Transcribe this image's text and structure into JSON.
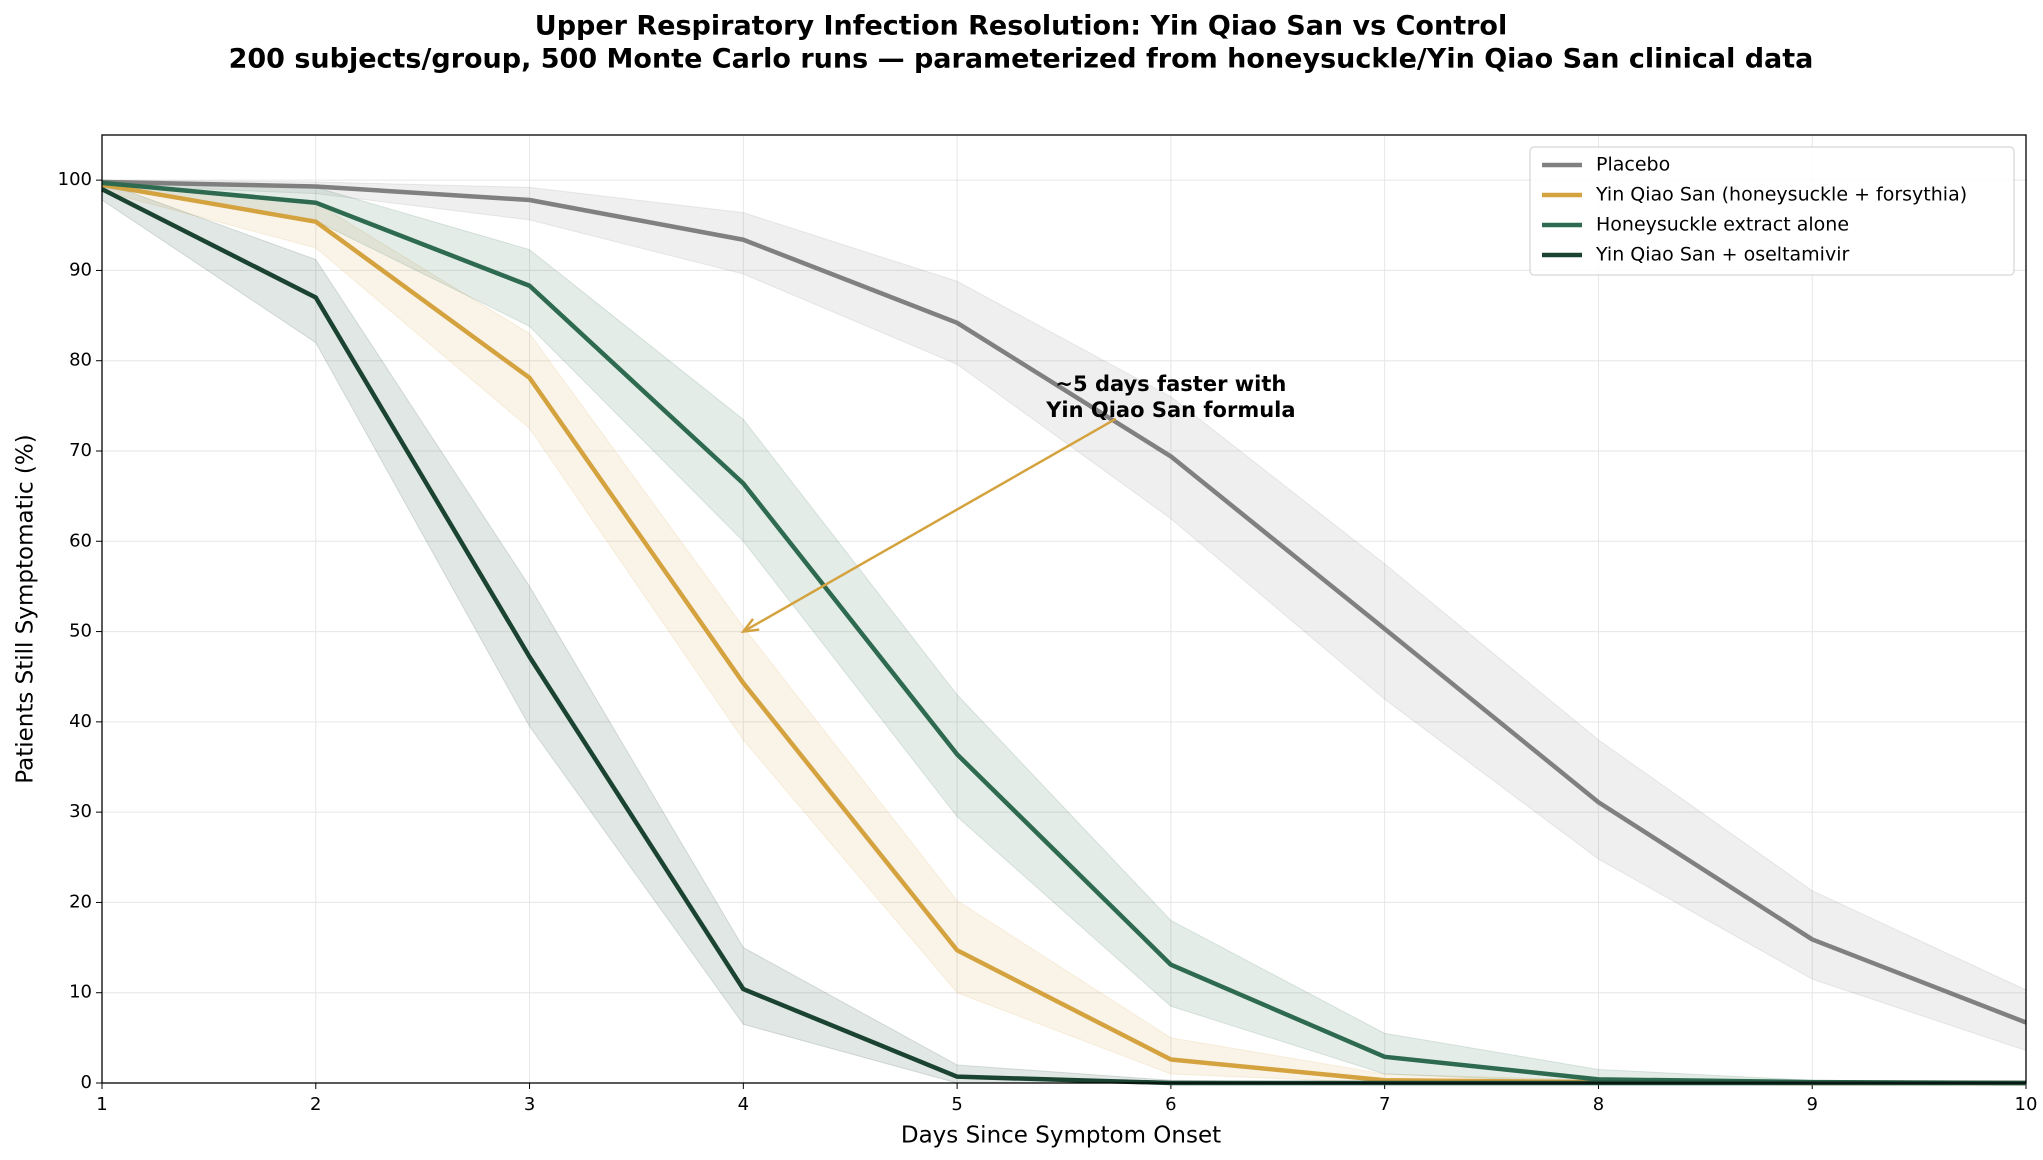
{
  "chart_data": {
    "type": "line",
    "title": "Upper Respiratory Infection Resolution: Yin Qiao San vs Control",
    "subtitle": "200 subjects/group, 500 Monte Carlo runs — parameterized from honeysuckle/Yin Qiao San clinical data",
    "xlabel": "Days Since Symptom Onset",
    "ylabel": "Patients Still Symptomatic (%)",
    "x": [
      1,
      2,
      3,
      4,
      5,
      6,
      7,
      8,
      9,
      10
    ],
    "xlim": [
      1,
      10
    ],
    "xticks": [
      1,
      2,
      3,
      4,
      5,
      6,
      7,
      8,
      9,
      10
    ],
    "ylim": [
      0,
      105
    ],
    "yticks": [
      0,
      10,
      20,
      30,
      40,
      50,
      60,
      70,
      80,
      90,
      100
    ],
    "grid": true,
    "legend": "upper right",
    "series": [
      {
        "name": "Placebo",
        "color": "#808080",
        "values": [
          99.8,
          99.3,
          97.8,
          93.4,
          84.2,
          69.4,
          50.3,
          31.1,
          15.9,
          6.7
        ],
        "upper": [
          100,
          99.8,
          99.2,
          96.4,
          88.8,
          76,
          57.5,
          38,
          21.3,
          10.3
        ],
        "lower": [
          99.5,
          98.5,
          95.6,
          89.6,
          79.6,
          62.5,
          42.5,
          24.8,
          11.5,
          3.6
        ]
      },
      {
        "name": "Yin Qiao San (honeysuckle + forsythia)",
        "color": "#d4a340",
        "values": [
          99.5,
          95.4,
          78.1,
          44.3,
          14.7,
          2.6,
          0.3,
          0.1,
          0,
          0
        ],
        "upper": [
          100,
          97.5,
          83,
          50.5,
          20.2,
          5,
          1,
          0.3,
          0.1,
          0
        ],
        "lower": [
          98.8,
          92.5,
          72.5,
          38,
          10,
          1,
          0,
          0,
          0,
          0
        ]
      },
      {
        "name": "Honeysuckle extract alone",
        "color": "#2d6a4f",
        "values": [
          99.7,
          97.5,
          88.3,
          66.4,
          36.4,
          13.1,
          2.9,
          0.4,
          0.1,
          0
        ],
        "upper": [
          100,
          99.2,
          92.3,
          73.5,
          43,
          18,
          5.5,
          1.5,
          0.3,
          0.1
        ],
        "lower": [
          99.2,
          95.5,
          83.8,
          60,
          29.5,
          8.5,
          1,
          0,
          0,
          0
        ]
      },
      {
        "name": "Yin Qiao San + oseltamivir",
        "color": "#1b4332",
        "values": [
          99,
          87,
          47.2,
          10.4,
          0.7,
          0,
          0,
          0,
          0,
          0
        ],
        "upper": [
          99.8,
          91.2,
          55,
          15,
          2,
          0.3,
          0,
          0,
          0,
          0
        ],
        "lower": [
          97.8,
          82,
          39.5,
          6.5,
          0,
          0,
          0,
          0,
          0,
          0
        ]
      }
    ],
    "annotation": {
      "text": [
        "~5 days faster with",
        "Yin Qiao San formula"
      ],
      "color": "#d4a340",
      "xy": [
        4,
        50
      ],
      "xytext": [
        6,
        76
      ]
    }
  }
}
